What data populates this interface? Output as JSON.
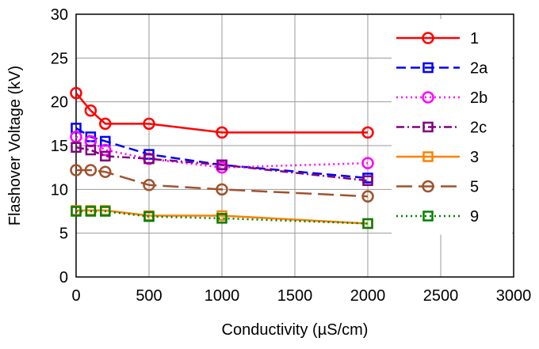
{
  "chart_data": {
    "type": "line",
    "xlabel": "Conductivity (µS/cm)",
    "ylabel": "Flashover Voltage (kV)",
    "xlim": [
      0,
      3000
    ],
    "ylim": [
      0,
      30
    ],
    "x_ticks": [
      0,
      500,
      1000,
      1500,
      2000,
      2500,
      3000
    ],
    "y_ticks": [
      0,
      5,
      10,
      15,
      20,
      25,
      30
    ],
    "grid": true,
    "legend_position": "right",
    "series": [
      {
        "name": "1",
        "color": "#ff0000",
        "marker": "circle",
        "dash": "solid",
        "x": [
          0,
          100,
          200,
          500,
          1000,
          2000
        ],
        "y": [
          21.0,
          19.0,
          17.5,
          17.5,
          16.5,
          16.5
        ]
      },
      {
        "name": "2a",
        "color": "#0000ff",
        "marker": "square",
        "dash": "dash",
        "x": [
          0,
          100,
          200,
          500,
          1000,
          2000
        ],
        "y": [
          17.0,
          16.0,
          15.5,
          14.0,
          12.8,
          11.3
        ]
      },
      {
        "name": "2b",
        "color": "#ff00ff",
        "marker": "circle",
        "dash": "dot",
        "x": [
          0,
          100,
          200,
          500,
          1000,
          2000
        ],
        "y": [
          16.0,
          15.5,
          14.5,
          13.5,
          12.5,
          13.0
        ]
      },
      {
        "name": "2c",
        "color": "#800080",
        "marker": "square",
        "dash": "dashdot",
        "x": [
          0,
          100,
          200,
          500,
          1000,
          2000
        ],
        "y": [
          14.8,
          14.5,
          13.8,
          13.5,
          12.8,
          11.0
        ]
      },
      {
        "name": "3",
        "color": "#ff8000",
        "marker": "square",
        "dash": "solid",
        "x": [
          0,
          100,
          200,
          500,
          1000,
          2000
        ],
        "y": [
          7.6,
          7.6,
          7.6,
          7.0,
          7.0,
          6.1
        ]
      },
      {
        "name": "5",
        "color": "#a0522d",
        "marker": "circle",
        "dash": "longdash",
        "x": [
          0,
          100,
          200,
          500,
          1000,
          2000
        ],
        "y": [
          12.2,
          12.2,
          12.0,
          10.5,
          10.0,
          9.2
        ]
      },
      {
        "name": "9",
        "color": "#008000",
        "marker": "square",
        "dash": "dot",
        "x": [
          0,
          100,
          200,
          500,
          1000,
          2000
        ],
        "y": [
          7.5,
          7.5,
          7.5,
          6.9,
          6.7,
          6.1
        ]
      }
    ]
  }
}
